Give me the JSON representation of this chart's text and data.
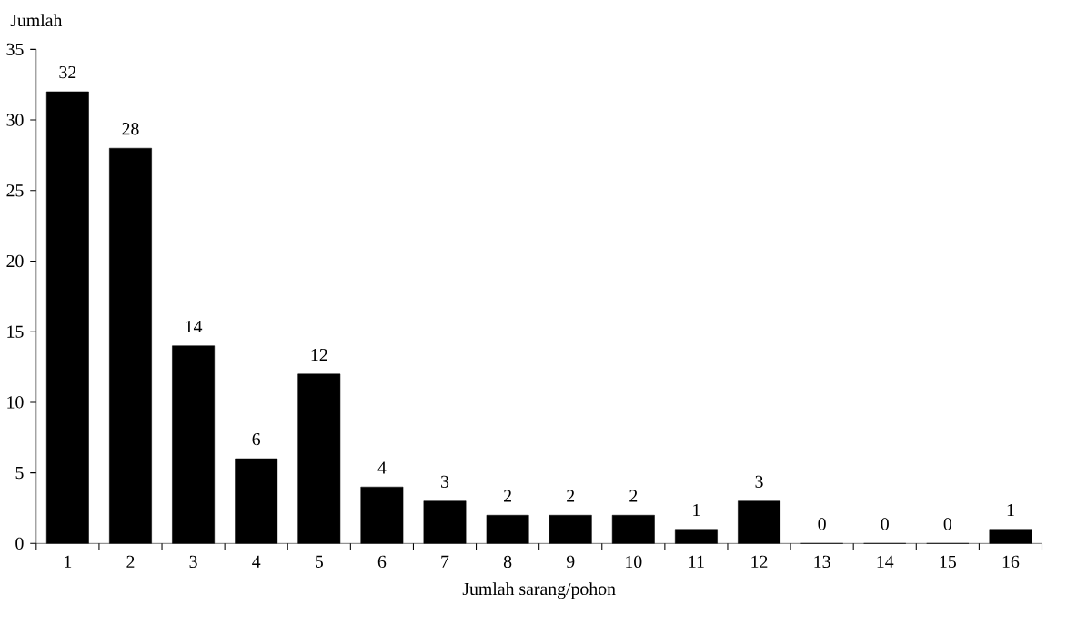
{
  "chart_data": {
    "type": "bar",
    "xlabel": "Jumlah sarang/pohon",
    "ylabel": "Jumlah",
    "categories": [
      "1",
      "2",
      "3",
      "4",
      "5",
      "6",
      "7",
      "8",
      "9",
      "10",
      "11",
      "12",
      "13",
      "14",
      "15",
      "16"
    ],
    "values": [
      32,
      28,
      14,
      6,
      12,
      4,
      3,
      2,
      2,
      2,
      1,
      3,
      0,
      0,
      0,
      1
    ],
    "color": "#000000",
    "ylim": [
      0,
      35
    ],
    "yticks": [
      0,
      5,
      10,
      15,
      20,
      25,
      30,
      35
    ],
    "data_labels": true
  }
}
